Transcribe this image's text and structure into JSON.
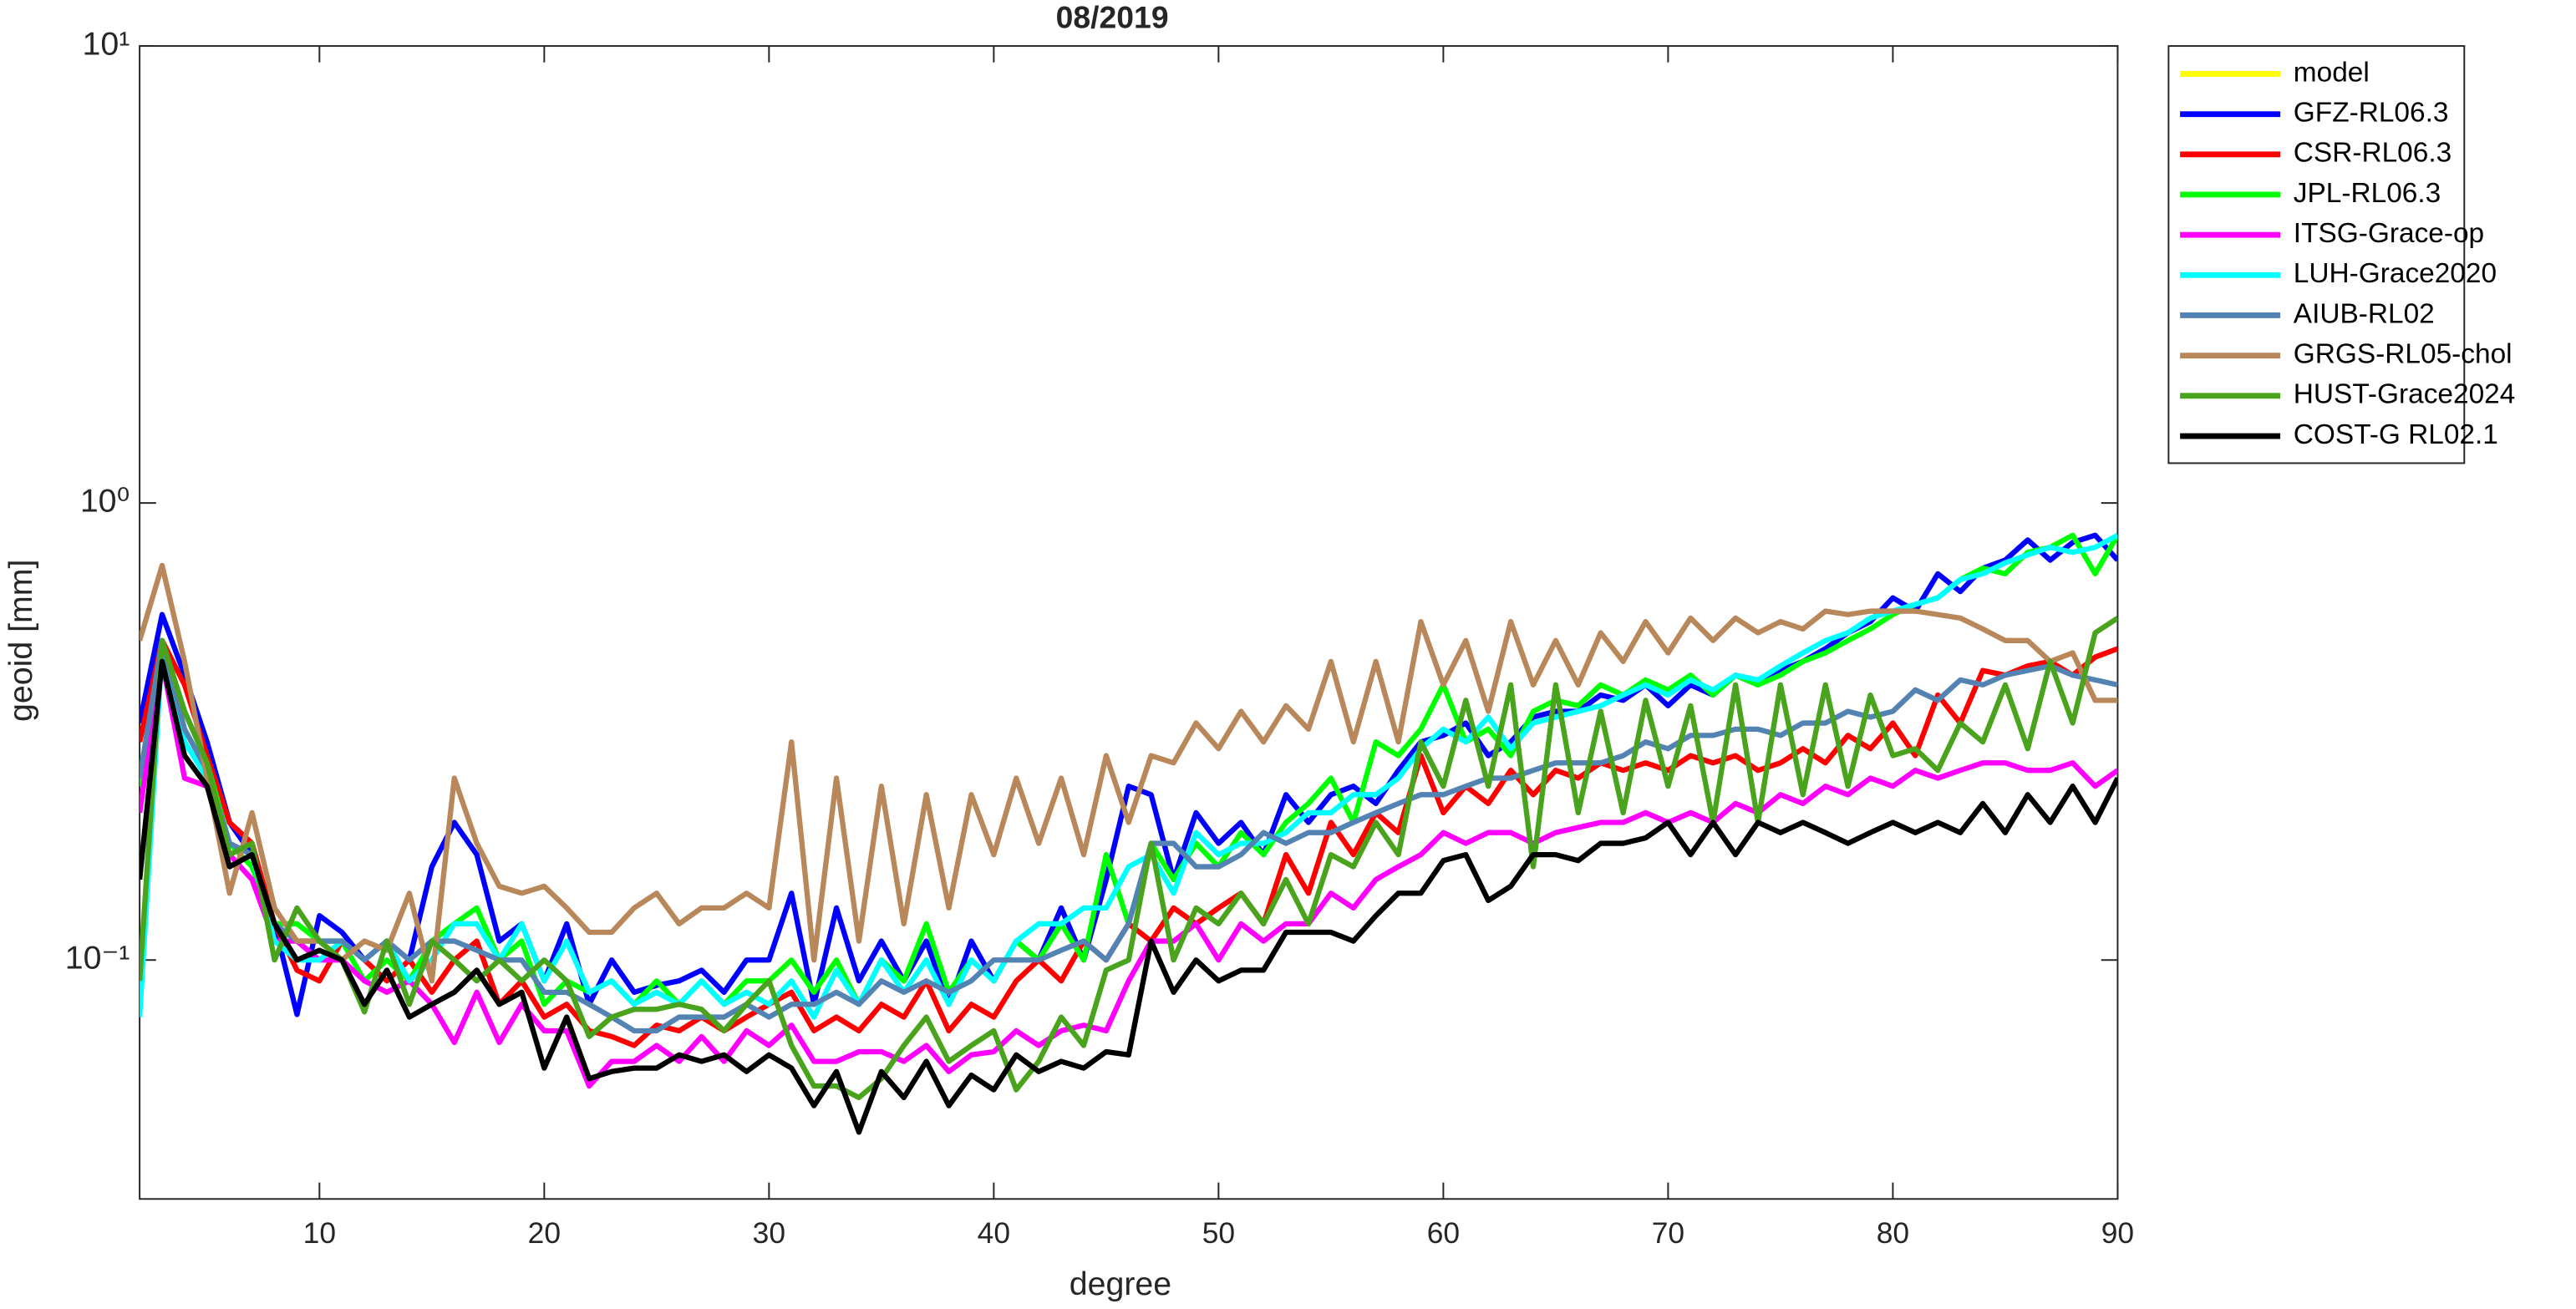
{
  "chart_data": {
    "type": "line",
    "title": "08/2019",
    "xlabel": "degree",
    "ylabel": "geoid [mm]",
    "xlim": [
      2,
      90
    ],
    "xticks": [
      10,
      20,
      30,
      40,
      50,
      60,
      70,
      80,
      90
    ],
    "ylim": [
      0.03,
      10
    ],
    "yscale": "log",
    "yticks": [
      {
        "value": 0.1,
        "label": "10⁻¹"
      },
      {
        "value": 1,
        "label": "10⁰"
      },
      {
        "value": 10,
        "label": "10¹"
      }
    ],
    "grid": false,
    "legend": "outside-right",
    "x": [
      2,
      3,
      4,
      5,
      6,
      7,
      8,
      9,
      10,
      11,
      12,
      13,
      14,
      15,
      16,
      17,
      18,
      19,
      20,
      21,
      22,
      23,
      24,
      25,
      26,
      27,
      28,
      29,
      30,
      31,
      32,
      33,
      34,
      35,
      36,
      37,
      38,
      39,
      40,
      41,
      42,
      43,
      44,
      45,
      46,
      47,
      48,
      49,
      50,
      51,
      52,
      53,
      54,
      55,
      56,
      57,
      58,
      59,
      60,
      61,
      62,
      63,
      64,
      65,
      66,
      67,
      68,
      69,
      70,
      71,
      72,
      73,
      74,
      75,
      76,
      77,
      78,
      79,
      80,
      81,
      82,
      83,
      84,
      85,
      86,
      87,
      88,
      89,
      90
    ],
    "series": [
      {
        "name": "model",
        "color": "#ffff00",
        "values": [
          null,
          null,
          null,
          null,
          null,
          null,
          null,
          null,
          null,
          null,
          null,
          null,
          null,
          null,
          null,
          null,
          null,
          null,
          null,
          null,
          null,
          null,
          null,
          null,
          null,
          null,
          null,
          null,
          null,
          null,
          null,
          null,
          null,
          null,
          null,
          null,
          null,
          null,
          null,
          null,
          null,
          null,
          null,
          null,
          null,
          null,
          null,
          null,
          null,
          null,
          null,
          null,
          null,
          null,
          null,
          null,
          null,
          null,
          null,
          null,
          null,
          null,
          null,
          null,
          null,
          null,
          null,
          null,
          null,
          null,
          null,
          null,
          null,
          null,
          null,
          null,
          null,
          null,
          null,
          null,
          null,
          null,
          null,
          null,
          null,
          null,
          null,
          null,
          null
        ]
      },
      {
        "name": "GFZ-RL06.3",
        "color": "#0000ff",
        "values": [
          0.33,
          0.57,
          0.42,
          0.3,
          0.2,
          0.17,
          0.12,
          0.076,
          0.125,
          0.115,
          0.1,
          0.11,
          0.1,
          0.16,
          0.2,
          0.17,
          0.11,
          0.12,
          0.09,
          0.12,
          0.08,
          0.1,
          0.085,
          0.088,
          0.09,
          0.095,
          0.085,
          0.1,
          0.1,
          0.14,
          0.08,
          0.13,
          0.09,
          0.11,
          0.09,
          0.11,
          0.08,
          0.11,
          0.09,
          0.11,
          0.1,
          0.13,
          0.1,
          0.15,
          0.24,
          0.23,
          0.15,
          0.21,
          0.18,
          0.2,
          0.17,
          0.23,
          0.2,
          0.23,
          0.24,
          0.22,
          0.26,
          0.3,
          0.31,
          0.33,
          0.28,
          0.3,
          0.34,
          0.35,
          0.35,
          0.38,
          0.37,
          0.4,
          0.36,
          0.4,
          0.38,
          0.42,
          0.4,
          0.43,
          0.45,
          0.48,
          0.52,
          0.55,
          0.62,
          0.58,
          0.7,
          0.64,
          0.72,
          0.75,
          0.83,
          0.75,
          0.82,
          0.85,
          0.75
        ]
      },
      {
        "name": "CSR-RL06.3",
        "color": "#ff0000",
        "values": [
          0.3,
          0.5,
          0.4,
          0.28,
          0.2,
          0.18,
          0.12,
          0.095,
          0.09,
          0.11,
          0.1,
          0.09,
          0.1,
          0.085,
          0.1,
          0.11,
          0.08,
          0.09,
          0.075,
          0.08,
          0.07,
          0.068,
          0.065,
          0.072,
          0.07,
          0.075,
          0.07,
          0.075,
          0.08,
          0.085,
          0.07,
          0.075,
          0.07,
          0.08,
          0.075,
          0.09,
          0.07,
          0.08,
          0.075,
          0.09,
          0.1,
          0.09,
          0.11,
          0.1,
          0.12,
          0.11,
          0.13,
          0.12,
          0.13,
          0.14,
          0.12,
          0.17,
          0.14,
          0.2,
          0.17,
          0.21,
          0.19,
          0.28,
          0.21,
          0.24,
          0.22,
          0.26,
          0.23,
          0.26,
          0.25,
          0.27,
          0.26,
          0.27,
          0.26,
          0.28,
          0.27,
          0.28,
          0.26,
          0.27,
          0.29,
          0.27,
          0.31,
          0.29,
          0.33,
          0.28,
          0.38,
          0.33,
          0.43,
          0.42,
          0.44,
          0.45,
          0.42,
          0.46,
          0.48
        ]
      },
      {
        "name": "JPL-RL06.3",
        "color": "#00ff00",
        "values": [
          0.24,
          0.5,
          0.35,
          0.27,
          0.18,
          0.16,
          0.12,
          0.12,
          0.11,
          0.11,
          0.09,
          0.1,
          0.09,
          0.11,
          0.12,
          0.13,
          0.1,
          0.11,
          0.08,
          0.09,
          0.085,
          0.09,
          0.08,
          0.09,
          0.08,
          0.09,
          0.08,
          0.09,
          0.09,
          0.1,
          0.085,
          0.1,
          0.08,
          0.1,
          0.09,
          0.12,
          0.085,
          0.1,
          0.09,
          0.11,
          0.1,
          0.12,
          0.1,
          0.17,
          0.12,
          0.18,
          0.15,
          0.18,
          0.16,
          0.19,
          0.17,
          0.2,
          0.22,
          0.25,
          0.2,
          0.3,
          0.28,
          0.32,
          0.4,
          0.3,
          0.32,
          0.28,
          0.35,
          0.37,
          0.36,
          0.4,
          0.38,
          0.41,
          0.39,
          0.42,
          0.38,
          0.42,
          0.4,
          0.42,
          0.45,
          0.47,
          0.5,
          0.53,
          0.57,
          0.6,
          0.62,
          0.68,
          0.72,
          0.7,
          0.78,
          0.8,
          0.85,
          0.7,
          0.85
        ]
      },
      {
        "name": "ITSG-Grace-op",
        "color": "#ff00ff",
        "values": [
          0.21,
          0.45,
          0.25,
          0.24,
          0.17,
          0.15,
          0.11,
          0.11,
          0.1,
          0.1,
          0.09,
          0.085,
          0.09,
          0.08,
          0.066,
          0.085,
          0.066,
          0.08,
          0.07,
          0.07,
          0.053,
          0.06,
          0.06,
          0.065,
          0.06,
          0.068,
          0.06,
          0.07,
          0.065,
          0.072,
          0.06,
          0.06,
          0.063,
          0.063,
          0.06,
          0.065,
          0.057,
          0.062,
          0.063,
          0.07,
          0.065,
          0.07,
          0.072,
          0.07,
          0.09,
          0.11,
          0.11,
          0.12,
          0.1,
          0.12,
          0.11,
          0.12,
          0.12,
          0.14,
          0.13,
          0.15,
          0.16,
          0.17,
          0.19,
          0.18,
          0.19,
          0.19,
          0.18,
          0.19,
          0.195,
          0.2,
          0.2,
          0.21,
          0.2,
          0.21,
          0.2,
          0.22,
          0.21,
          0.23,
          0.22,
          0.24,
          0.23,
          0.25,
          0.24,
          0.26,
          0.25,
          0.26,
          0.27,
          0.27,
          0.26,
          0.26,
          0.27,
          0.24,
          0.26
        ]
      },
      {
        "name": "LUH-Grace2020",
        "color": "#00ffff",
        "values": [
          0.075,
          0.48,
          0.3,
          0.25,
          0.18,
          0.17,
          0.11,
          0.1,
          0.1,
          0.11,
          0.1,
          0.11,
          0.09,
          0.1,
          0.12,
          0.12,
          0.1,
          0.12,
          0.09,
          0.11,
          0.085,
          0.09,
          0.08,
          0.085,
          0.08,
          0.09,
          0.08,
          0.085,
          0.08,
          0.09,
          0.075,
          0.095,
          0.08,
          0.1,
          0.085,
          0.1,
          0.08,
          0.1,
          0.09,
          0.11,
          0.12,
          0.12,
          0.13,
          0.13,
          0.16,
          0.17,
          0.14,
          0.19,
          0.17,
          0.18,
          0.18,
          0.19,
          0.21,
          0.21,
          0.23,
          0.23,
          0.25,
          0.29,
          0.32,
          0.3,
          0.34,
          0.29,
          0.33,
          0.34,
          0.35,
          0.36,
          0.38,
          0.4,
          0.38,
          0.41,
          0.39,
          0.42,
          0.41,
          0.44,
          0.47,
          0.5,
          0.52,
          0.56,
          0.58,
          0.6,
          0.62,
          0.68,
          0.7,
          0.74,
          0.77,
          0.8,
          0.78,
          0.8,
          0.85
        ]
      },
      {
        "name": "AIUB-RL02",
        "color": "#5383b3",
        "values": [
          0.25,
          0.5,
          0.32,
          0.26,
          0.18,
          0.17,
          0.12,
          0.11,
          0.11,
          0.11,
          0.1,
          0.11,
          0.1,
          0.11,
          0.11,
          0.105,
          0.1,
          0.1,
          0.085,
          0.085,
          0.08,
          0.075,
          0.07,
          0.07,
          0.075,
          0.075,
          0.075,
          0.08,
          0.075,
          0.08,
          0.08,
          0.085,
          0.08,
          0.09,
          0.085,
          0.09,
          0.085,
          0.09,
          0.1,
          0.1,
          0.1,
          0.105,
          0.11,
          0.1,
          0.12,
          0.18,
          0.18,
          0.16,
          0.16,
          0.17,
          0.19,
          0.18,
          0.19,
          0.19,
          0.2,
          0.21,
          0.22,
          0.23,
          0.23,
          0.24,
          0.25,
          0.25,
          0.26,
          0.27,
          0.27,
          0.27,
          0.28,
          0.3,
          0.29,
          0.31,
          0.31,
          0.32,
          0.32,
          0.31,
          0.33,
          0.33,
          0.35,
          0.34,
          0.35,
          0.39,
          0.37,
          0.41,
          0.4,
          0.42,
          0.43,
          0.44,
          0.42,
          0.41,
          0.4
        ]
      },
      {
        "name": "GRGS-RL05-chol",
        "color": "#b8875a",
        "values": [
          0.5,
          0.73,
          0.45,
          0.25,
          0.14,
          0.21,
          0.13,
          0.11,
          0.11,
          0.1,
          0.11,
          0.105,
          0.14,
          0.09,
          0.25,
          0.18,
          0.145,
          0.14,
          0.145,
          0.13,
          0.115,
          0.115,
          0.13,
          0.14,
          0.12,
          0.13,
          0.13,
          0.14,
          0.13,
          0.3,
          0.1,
          0.25,
          0.11,
          0.24,
          0.12,
          0.23,
          0.13,
          0.23,
          0.17,
          0.25,
          0.18,
          0.25,
          0.17,
          0.28,
          0.2,
          0.28,
          0.27,
          0.33,
          0.29,
          0.35,
          0.3,
          0.36,
          0.32,
          0.45,
          0.3,
          0.45,
          0.3,
          0.55,
          0.4,
          0.5,
          0.35,
          0.55,
          0.4,
          0.5,
          0.4,
          0.52,
          0.45,
          0.55,
          0.47,
          0.56,
          0.5,
          0.56,
          0.52,
          0.55,
          0.53,
          0.58,
          0.57,
          0.58,
          0.58,
          0.58,
          0.57,
          0.56,
          0.53,
          0.5,
          0.5,
          0.45,
          0.47,
          0.37,
          0.37
        ]
      },
      {
        "name": "HUST-Grace2024",
        "color": "#4aa31c",
        "values": [
          0.09,
          0.5,
          0.35,
          0.27,
          0.17,
          0.18,
          0.1,
          0.13,
          0.11,
          0.1,
          0.077,
          0.11,
          0.08,
          0.11,
          0.1,
          0.09,
          0.1,
          0.09,
          0.1,
          0.09,
          0.068,
          0.075,
          0.078,
          0.078,
          0.08,
          0.078,
          0.07,
          0.08,
          0.09,
          0.065,
          0.053,
          0.053,
          0.05,
          0.055,
          0.065,
          0.075,
          0.06,
          0.065,
          0.07,
          0.052,
          0.06,
          0.075,
          0.065,
          0.095,
          0.1,
          0.18,
          0.1,
          0.13,
          0.12,
          0.14,
          0.12,
          0.15,
          0.12,
          0.17,
          0.16,
          0.2,
          0.17,
          0.3,
          0.24,
          0.37,
          0.24,
          0.4,
          0.16,
          0.4,
          0.21,
          0.35,
          0.21,
          0.37,
          0.24,
          0.36,
          0.2,
          0.4,
          0.2,
          0.4,
          0.23,
          0.4,
          0.24,
          0.38,
          0.28,
          0.29,
          0.26,
          0.33,
          0.3,
          0.4,
          0.29,
          0.45,
          0.33,
          0.52,
          0.56
        ]
      },
      {
        "name": "COST-G RL02.1",
        "color": "#000000",
        "values": [
          0.15,
          0.45,
          0.28,
          0.24,
          0.16,
          0.17,
          0.12,
          0.1,
          0.105,
          0.1,
          0.08,
          0.095,
          0.075,
          0.08,
          0.085,
          0.095,
          0.08,
          0.085,
          0.058,
          0.075,
          0.055,
          0.057,
          0.058,
          0.058,
          0.062,
          0.06,
          0.062,
          0.057,
          0.062,
          0.058,
          0.048,
          0.057,
          0.042,
          0.057,
          0.05,
          0.06,
          0.048,
          0.056,
          0.052,
          0.062,
          0.057,
          0.06,
          0.058,
          0.063,
          0.062,
          0.11,
          0.085,
          0.1,
          0.09,
          0.095,
          0.095,
          0.115,
          0.115,
          0.115,
          0.11,
          0.125,
          0.14,
          0.14,
          0.165,
          0.17,
          0.135,
          0.145,
          0.17,
          0.17,
          0.165,
          0.18,
          0.18,
          0.185,
          0.2,
          0.17,
          0.2,
          0.17,
          0.2,
          0.19,
          0.2,
          0.19,
          0.18,
          0.19,
          0.2,
          0.19,
          0.2,
          0.19,
          0.22,
          0.19,
          0.23,
          0.2,
          0.24,
          0.2,
          0.25
        ]
      }
    ]
  }
}
